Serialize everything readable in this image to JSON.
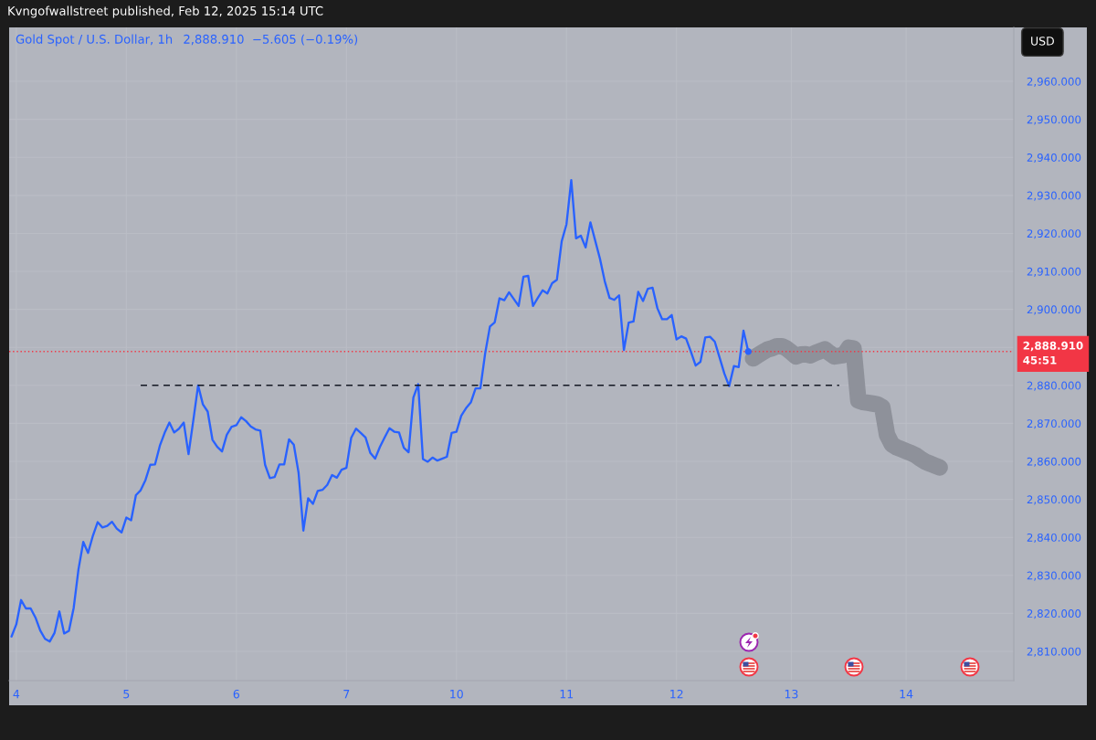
{
  "chart_data": {
    "type": "line",
    "title": "Gold Spot / U.S. Dollar, 1h",
    "subtitle": "2,888.910  −5.605 (−0.19%)",
    "annotations": [
      "Kvngofwallstreet published, Feb 12, 2025 15:14 UTC",
      "USD"
    ],
    "line_style": "solid",
    "grid": true,
    "categories": [
      null,
      "4",
      null,
      null,
      null,
      null,
      null,
      null,
      null,
      null,
      null,
      null,
      null,
      null,
      null,
      null,
      null,
      null,
      null,
      null,
      null,
      null,
      null,
      null,
      "5",
      null,
      null,
      null,
      null,
      null,
      null,
      null,
      null,
      null,
      null,
      null,
      null,
      null,
      null,
      null,
      null,
      null,
      null,
      null,
      null,
      null,
      null,
      "6",
      null,
      null,
      null,
      null,
      null,
      null,
      null,
      null,
      null,
      null,
      null,
      null,
      null,
      null,
      null,
      null,
      null,
      null,
      null,
      null,
      null,
      null,
      "7",
      null,
      null,
      null,
      null,
      null,
      null,
      null,
      null,
      null,
      null,
      null,
      null,
      null,
      null,
      null,
      null,
      null,
      null,
      null,
      null,
      null,
      null,
      "10",
      null,
      null,
      null,
      null,
      null,
      null,
      null,
      null,
      null,
      null,
      null,
      null,
      null,
      null,
      null,
      null,
      null,
      null,
      null,
      null,
      null,
      null,
      "11",
      null,
      null,
      null,
      null,
      null,
      null,
      null,
      null,
      null,
      null,
      null,
      null,
      null,
      null,
      null,
      null,
      null,
      null,
      null,
      null,
      null,
      null,
      "12",
      null,
      null,
      null,
      null,
      null,
      null,
      null,
      null,
      null,
      null,
      null,
      null,
      null,
      null,
      null,
      null,
      null,
      null,
      null,
      null,
      null,
      null,
      null,
      "13",
      null,
      null,
      null,
      null,
      null,
      null,
      null,
      null,
      null,
      null,
      null,
      null,
      null,
      null,
      null,
      null,
      null,
      null,
      null,
      null,
      null,
      null,
      null,
      "14",
      null,
      null,
      null,
      null,
      null,
      null,
      null,
      null,
      null,
      null,
      null,
      null,
      null,
      null,
      null,
      null,
      null,
      null,
      null,
      null,
      null,
      null
    ],
    "ylim": [
      2802.3,
      2974.2
    ],
    "yticks": [
      {
        "value": 2810,
        "label": "2,810.000"
      },
      {
        "value": 2820,
        "label": "2,820.000"
      },
      {
        "value": 2830,
        "label": "2,830.000"
      },
      {
        "value": 2840,
        "label": "2,840.000"
      },
      {
        "value": 2850,
        "label": "2,850.000"
      },
      {
        "value": 2860,
        "label": "2,860.000"
      },
      {
        "value": 2870,
        "label": "2,870.000"
      },
      {
        "value": 2880,
        "label": "2,880.000"
      },
      {
        "value": 2890,
        "label": null
      },
      {
        "value": 2900,
        "label": "2,900.000"
      },
      {
        "value": 2910,
        "label": "2,910.000"
      },
      {
        "value": 2920,
        "label": "2,920.000"
      },
      {
        "value": 2930,
        "label": "2,930.000"
      },
      {
        "value": 2940,
        "label": "2,940.000"
      },
      {
        "value": 2950,
        "label": "2,950.000"
      },
      {
        "value": 2960,
        "label": "2,960.000"
      }
    ],
    "ref_lines": [
      {
        "axis": "y",
        "value": 2888.91,
        "label": "2,888.910\n45:51",
        "color": "#f23645",
        "line_style": "dotted"
      }
    ],
    "series": [
      {
        "color": "#2962ff",
        "values": [
          2813.9,
          2817.1,
          2823.5,
          2821.3,
          2821.3,
          2818.9,
          2815.5,
          2813.3,
          2812.6,
          2814.9,
          2820.5,
          2814.7,
          2815.4,
          2821.5,
          2831.6,
          2838.8,
          2835.9,
          2840.4,
          2844.0,
          2842.6,
          2843.0,
          2844.1,
          2842.3,
          2841.3,
          2845.2,
          2844.5,
          2851.1,
          2852.4,
          2855.1,
          2859.1,
          2859.2,
          2864.1,
          2867.5,
          2870.2,
          2867.6,
          2868.6,
          2870.2,
          2861.9,
          2870.8,
          2880.0,
          2875.0,
          2873.1,
          2865.7,
          2863.8,
          2862.6,
          2867.0,
          2869.1,
          2869.5,
          2871.6,
          2870.6,
          2869.2,
          2868.4,
          2868.1,
          2859.1,
          2855.6,
          2855.9,
          2859.2,
          2859.2,
          2865.8,
          2864.4,
          2857.0,
          2841.8,
          2850.3,
          2848.8,
          2852.2,
          2852.5,
          2853.8,
          2856.4,
          2855.7,
          2857.8,
          2858.3,
          2866.2,
          2868.6,
          2867.5,
          2866.3,
          2862.2,
          2860.7,
          2863.8,
          2866.3,
          2868.7,
          2867.8,
          2867.6,
          2863.6,
          2862.4,
          2876.8,
          2880.3,
          2860.6,
          2859.9,
          2861.0,
          2860.2,
          2860.7,
          2861.2,
          2867.5,
          2867.8,
          2872.0,
          2874.0,
          2875.5,
          2879.2,
          2879.2,
          2888.4,
          2895.5,
          2896.6,
          2902.9,
          2902.4,
          2904.5,
          2902.7,
          2900.9,
          2908.6,
          2908.8,
          2900.9,
          2903.0,
          2905.0,
          2904.2,
          2906.9,
          2907.8,
          2917.9,
          2922.4,
          2934.0,
          2918.7,
          2919.4,
          2916.3,
          2922.9,
          2918.1,
          2913.3,
          2907.4,
          2903.0,
          2902.5,
          2903.7,
          2889.3,
          2896.5,
          2896.8,
          2904.6,
          2902.2,
          2905.4,
          2905.7,
          2900.3,
          2897.4,
          2897.4,
          2898.5,
          2892.1,
          2892.9,
          2892.3,
          2888.9,
          2885.2,
          2886.2,
          2892.6,
          2892.8,
          2891.5,
          2887.3,
          2883.1,
          2879.8,
          2885.1,
          2884.8,
          2894.4,
          2888.9,
          null,
          null,
          null,
          null,
          null,
          null,
          null,
          null,
          null,
          null,
          null,
          null,
          null,
          null,
          null,
          null,
          null,
          null,
          null,
          null,
          null,
          null,
          null,
          null,
          null,
          null,
          null,
          null,
          null,
          null,
          null,
          null,
          null,
          null,
          null,
          null,
          null,
          null,
          null,
          null,
          null,
          null,
          null,
          null,
          null,
          null,
          null,
          null,
          null,
          null,
          null,
          null,
          null,
          null,
          null
        ]
      },
      {
        "type": "line",
        "color": "#131722",
        "line_style": "dashed",
        "values": [
          null,
          null,
          null,
          null,
          null,
          null,
          null,
          null,
          null,
          null,
          null,
          null,
          null,
          null,
          null,
          null,
          null,
          null,
          null,
          null,
          null,
          null,
          null,
          null,
          null,
          null,
          null,
          2880,
          2880,
          2880,
          2880,
          2880,
          2880,
          2880,
          2880,
          2880,
          2880,
          2880,
          2880,
          2880,
          2880,
          2880,
          2880,
          2880,
          2880,
          2880,
          2880,
          2880,
          2880,
          2880,
          2880,
          2880,
          2880,
          2880,
          2880,
          2880,
          2880,
          2880,
          2880,
          2880,
          2880,
          2880,
          2880,
          2880,
          2880,
          2880,
          2880,
          2880,
          2880,
          2880,
          2880,
          2880,
          2880,
          2880,
          2880,
          2880,
          2880,
          2880,
          2880,
          2880,
          2880,
          2880,
          2880,
          2880,
          2880,
          2880,
          2880,
          2880,
          2880,
          2880,
          2880,
          2880,
          2880,
          2880,
          2880,
          2880,
          2880,
          2880,
          2880,
          2880,
          2880,
          2880,
          2880,
          2880,
          2880,
          2880,
          2880,
          2880,
          2880,
          2880,
          2880,
          2880,
          2880,
          2880,
          2880,
          2880,
          2880,
          2880,
          2880,
          2880,
          2880,
          2880,
          2880,
          2880,
          2880,
          2880,
          2880,
          2880,
          2880,
          2880,
          2880,
          2880,
          2880,
          2880,
          2880,
          2880,
          2880,
          2880,
          2880,
          2880,
          2880,
          2880,
          2880,
          2880,
          2880,
          2880,
          2880,
          2880,
          2880,
          2880,
          2880,
          2880,
          2880,
          2880,
          2880,
          2880,
          2880,
          2880,
          2880,
          2880,
          2880,
          2880,
          2880,
          2880,
          2880,
          2880,
          2880,
          2880,
          2880,
          2880,
          2880,
          2880,
          2880,
          2880,
          null,
          null,
          null,
          null,
          null,
          null,
          null,
          null,
          null,
          null,
          null,
          null,
          null,
          null,
          null,
          null,
          null,
          null,
          null,
          null,
          null,
          null,
          null,
          null,
          null,
          null,
          null,
          null,
          null,
          null,
          null,
          null,
          null,
          null,
          null,
          null
        ]
      },
      {
        "type": "line",
        "color": "#8e919a",
        "values": [
          null,
          null,
          null,
          null,
          null,
          null,
          null,
          null,
          null,
          null,
          null,
          null,
          null,
          null,
          null,
          null,
          null,
          null,
          null,
          null,
          null,
          null,
          null,
          null,
          null,
          null,
          null,
          null,
          null,
          null,
          null,
          null,
          null,
          null,
          null,
          null,
          null,
          null,
          null,
          null,
          null,
          null,
          null,
          null,
          null,
          null,
          null,
          null,
          null,
          null,
          null,
          null,
          null,
          null,
          null,
          null,
          null,
          null,
          null,
          null,
          null,
          null,
          null,
          null,
          null,
          null,
          null,
          null,
          null,
          null,
          null,
          null,
          null,
          null,
          null,
          null,
          null,
          null,
          null,
          null,
          null,
          null,
          null,
          null,
          null,
          null,
          null,
          null,
          null,
          null,
          null,
          null,
          null,
          null,
          null,
          null,
          null,
          null,
          null,
          null,
          null,
          null,
          null,
          null,
          null,
          null,
          null,
          null,
          null,
          null,
          null,
          null,
          null,
          null,
          null,
          null,
          null,
          null,
          null,
          null,
          null,
          null,
          null,
          null,
          null,
          null,
          null,
          null,
          null,
          null,
          null,
          null,
          null,
          null,
          null,
          null,
          null,
          null,
          null,
          null,
          null,
          null,
          null,
          null,
          null,
          null,
          null,
          null,
          null,
          null,
          null,
          null,
          null,
          null,
          null,
          2887.1,
          2887.9,
          2888.7,
          2889.4,
          2889.8,
          2890.3,
          2890.3,
          2889.7,
          2888.7,
          2887.6,
          2888.1,
          2888.2,
          2887.9,
          2888.5,
          2889.0,
          2889.5,
          2888.5,
          2887.6,
          2887.8,
          2888.0,
          2889.9,
          2889.7,
          2876.0,
          2875.6,
          2875.4,
          2875.2,
          2875.0,
          2874.3,
          2867.0,
          2864.5,
          2863.7,
          2863.2,
          2862.7,
          2862.2,
          2861.6,
          2860.7,
          2859.9,
          2859.4,
          2858.9,
          2858.4,
          null,
          null,
          null,
          null,
          null,
          null,
          null,
          null,
          null,
          null,
          null,
          null,
          null,
          null,
          null
        ]
      },
      {
        "type": "scatter",
        "color": "#2962ff",
        "marker": "circle",
        "values": [
          null,
          null,
          null,
          null,
          null,
          null,
          null,
          null,
          null,
          null,
          null,
          null,
          null,
          null,
          null,
          null,
          null,
          null,
          null,
          null,
          null,
          null,
          null,
          null,
          null,
          null,
          null,
          null,
          null,
          null,
          null,
          null,
          null,
          null,
          null,
          null,
          null,
          null,
          null,
          null,
          null,
          null,
          null,
          null,
          null,
          null,
          null,
          null,
          null,
          null,
          null,
          null,
          null,
          null,
          null,
          null,
          null,
          null,
          null,
          null,
          null,
          null,
          null,
          null,
          null,
          null,
          null,
          null,
          null,
          null,
          null,
          null,
          null,
          null,
          null,
          null,
          null,
          null,
          null,
          null,
          null,
          null,
          null,
          null,
          null,
          null,
          null,
          null,
          null,
          null,
          null,
          null,
          null,
          null,
          null,
          null,
          null,
          null,
          null,
          null,
          null,
          null,
          null,
          null,
          null,
          null,
          null,
          null,
          null,
          null,
          null,
          null,
          null,
          null,
          null,
          null,
          null,
          null,
          null,
          null,
          null,
          null,
          null,
          null,
          null,
          null,
          null,
          null,
          null,
          null,
          null,
          null,
          null,
          null,
          null,
          null,
          null,
          null,
          null,
          null,
          null,
          null,
          null,
          null,
          null,
          null,
          null,
          null,
          null,
          null,
          null,
          null,
          null,
          null,
          2888.9,
          null,
          null,
          null,
          null,
          null,
          null,
          null,
          null,
          null,
          null,
          null,
          null,
          null,
          null,
          null,
          null,
          null,
          null,
          null,
          null,
          null,
          null,
          null,
          null,
          null,
          null,
          null,
          null,
          null,
          null,
          null,
          null,
          null,
          null,
          null,
          null,
          null,
          null,
          null,
          null,
          null,
          null,
          null,
          null,
          null,
          null,
          null,
          null,
          null,
          null,
          null,
          null,
          null,
          null,
          null
        ]
      }
    ]
  }
}
